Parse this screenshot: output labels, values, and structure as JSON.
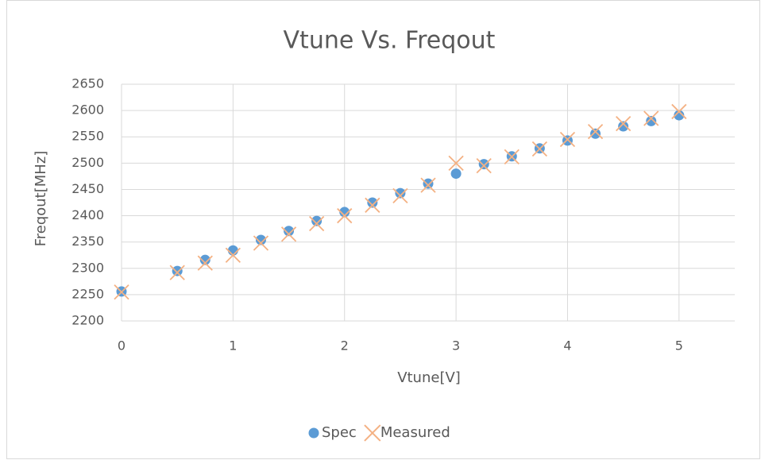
{
  "chart_data": {
    "type": "scatter",
    "title": "Vtune Vs. Freqout",
    "xlabel": "Vtune[V]",
    "ylabel": "Freqout[MHz]",
    "x": [
      0,
      0.5,
      0.75,
      1,
      1.25,
      1.5,
      1.75,
      2,
      2.25,
      2.5,
      2.75,
      3,
      3.25,
      3.5,
      3.75,
      4,
      4.25,
      4.5,
      4.75,
      5
    ],
    "series": [
      {
        "name": "Spec",
        "color": "#5b9bd5",
        "marker": "circle",
        "values": [
          2256,
          2295,
          2316,
          2334,
          2354,
          2371,
          2390,
          2407,
          2425,
          2443,
          2461,
          2480,
          2498,
          2513,
          2528,
          2543,
          2556,
          2570,
          2580,
          2591
        ]
      },
      {
        "name": "Measured",
        "color": "#f4b183",
        "marker": "x",
        "values": [
          2255,
          2292,
          2310,
          2325,
          2348,
          2365,
          2385,
          2400,
          2420,
          2438,
          2458,
          2500,
          2495,
          2512,
          2527,
          2545,
          2560,
          2575,
          2585,
          2598
        ]
      }
    ],
    "xlim": [
      0,
      5.5
    ],
    "xticks": [
      0,
      1,
      2,
      3,
      4,
      5
    ],
    "ylim": [
      2200,
      2650
    ],
    "yticks": [
      2200,
      2250,
      2300,
      2350,
      2400,
      2450,
      2500,
      2550,
      2600,
      2650
    ],
    "grid": true,
    "legend": "bottom"
  }
}
